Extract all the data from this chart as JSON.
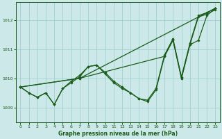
{
  "background_color": "#cce8e8",
  "grid_color": "#99cccc",
  "line_color": "#1a5c1a",
  "title": "Graphe pression niveau de la mer (hPa)",
  "xlim": [
    -0.5,
    23.5
  ],
  "ylim": [
    1008.5,
    1012.6
  ],
  "yticks": [
    1009,
    1010,
    1011,
    1012
  ],
  "xticks": [
    0,
    1,
    2,
    3,
    4,
    5,
    6,
    7,
    8,
    9,
    10,
    11,
    12,
    13,
    14,
    15,
    16,
    17,
    18,
    19,
    20,
    21,
    22,
    23
  ],
  "series": [
    {
      "x": [
        0,
        1,
        2,
        3,
        4,
        5,
        6,
        7,
        8,
        9,
        10,
        11,
        12,
        13,
        14,
        15,
        16,
        17,
        18,
        19,
        20,
        21,
        22,
        23
      ],
      "y": [
        1009.7,
        1009.5,
        1009.35,
        1009.5,
        1009.1,
        1009.65,
        1009.85,
        1010.05,
        1010.4,
        1010.45,
        1010.15,
        1009.85,
        1009.65,
        1009.5,
        1009.3,
        1009.2,
        1009.6,
        1010.75,
        1011.3,
        1010.0,
        1011.15,
        1012.1,
        1012.2,
        1012.35
      ]
    },
    {
      "x": [
        0,
        1,
        2,
        3,
        4,
        5,
        6,
        7,
        8,
        9,
        10,
        11,
        12,
        13,
        14,
        15,
        16,
        17,
        18,
        19,
        20,
        21,
        22,
        23
      ],
      "y": [
        1009.7,
        1009.5,
        1009.35,
        1009.5,
        1009.1,
        1009.65,
        1009.9,
        1010.1,
        1010.4,
        1010.45,
        1010.2,
        1009.9,
        1009.7,
        1009.5,
        1009.3,
        1009.25,
        1009.65,
        1010.8,
        1011.35,
        1010.05,
        1011.2,
        1012.15,
        1012.25,
        1012.4
      ]
    },
    {
      "x": [
        0,
        7,
        23
      ],
      "y": [
        1009.7,
        1010.0,
        1012.4
      ]
    },
    {
      "x": [
        0,
        7,
        17,
        18,
        19,
        20,
        21,
        22,
        23
      ],
      "y": [
        1009.7,
        1010.0,
        1010.75,
        1011.35,
        1010.0,
        1011.15,
        1011.3,
        1012.15,
        1012.4
      ]
    }
  ]
}
